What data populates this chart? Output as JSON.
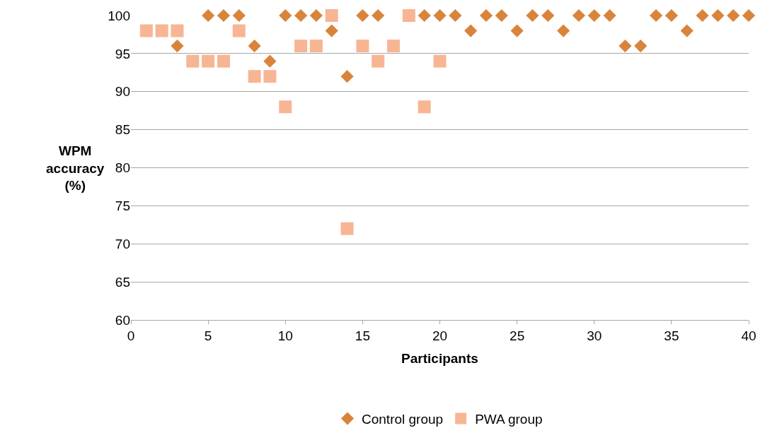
{
  "chart_data": {
    "type": "scatter",
    "xlabel": "Participants",
    "ylabel": "WPM accuracy (%)",
    "xlim": [
      0,
      40
    ],
    "xticks": [
      0,
      5,
      10,
      15,
      20,
      25,
      30,
      35,
      40
    ],
    "ylim": [
      60,
      100
    ],
    "yticks": [
      60,
      65,
      70,
      75,
      80,
      85,
      90,
      95,
      100
    ],
    "grid": "y",
    "legend": "bottom",
    "series": [
      {
        "name": "Control group",
        "color": "#d9843b",
        "marker": "diamond",
        "x": [
          3,
          5,
          6,
          7,
          8,
          9,
          10,
          11,
          12,
          13,
          14,
          15,
          16,
          19,
          20,
          21,
          22,
          23,
          24,
          25,
          26,
          27,
          28,
          29,
          30,
          31,
          32,
          33,
          34,
          35,
          36,
          37,
          38,
          39,
          40
        ],
        "values": [
          96,
          100,
          100,
          100,
          96,
          94,
          100,
          100,
          100,
          98,
          92,
          100,
          100,
          100,
          100,
          100,
          98,
          100,
          100,
          98,
          100,
          100,
          98,
          100,
          100,
          100,
          96,
          96,
          100,
          100,
          98,
          100,
          100,
          100,
          100
        ]
      },
      {
        "name": "PWA group",
        "color": "#f7b594",
        "marker": "square",
        "x": [
          1,
          2,
          3,
          4,
          5,
          6,
          7,
          8,
          9,
          10,
          11,
          12,
          13,
          14,
          15,
          16,
          17,
          18,
          19,
          20
        ],
        "values": [
          98,
          98,
          98,
          94,
          94,
          94,
          98,
          92,
          92,
          88,
          96,
          96,
          100,
          72,
          96,
          94,
          96,
          100,
          88,
          94
        ]
      }
    ]
  }
}
